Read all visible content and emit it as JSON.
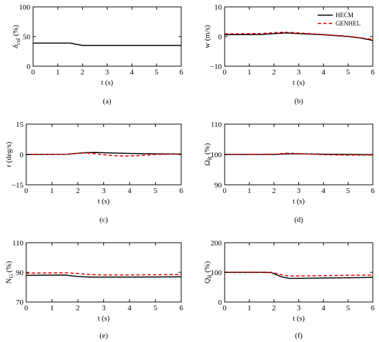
{
  "chart_data": [
    {
      "type": "line",
      "panel_label": "(a)",
      "xlabel": "t (s)",
      "ylabel": "δcol (%)",
      "ylabel_main": "δ",
      "ylabel_sub": "col",
      "ylabel_tail": " (%)",
      "xlim": [
        0,
        6
      ],
      "ylim": [
        0,
        100
      ],
      "xticks": [
        "0",
        "1",
        "2",
        "3",
        "4",
        "5",
        "6"
      ],
      "yticks": [
        "0",
        "50",
        "100"
      ],
      "series": [
        {
          "color": "#000000",
          "dash": "solid",
          "x": [
            0,
            1.5,
            2.0,
            6
          ],
          "y": [
            39,
            39,
            35,
            35
          ]
        }
      ]
    },
    {
      "type": "line",
      "panel_label": "(b)",
      "xlabel": "t (s)",
      "ylabel": "w (m/s)",
      "xlim": [
        0,
        6
      ],
      "ylim": [
        -10,
        10
      ],
      "xticks": [
        "0",
        "1",
        "2",
        "3",
        "4",
        "5",
        "6"
      ],
      "yticks": [
        "−10",
        "0",
        "10"
      ],
      "legend": "top-right",
      "series": [
        {
          "name": "HECM",
          "color": "#000000",
          "dash": "solid",
          "x": [
            0,
            1.5,
            2.0,
            2.5,
            3.0,
            4.0,
            5.0,
            5.5,
            6.0
          ],
          "y": [
            0.6,
            0.7,
            1.0,
            1.2,
            1.0,
            0.6,
            0.0,
            -0.5,
            -1.3
          ]
        },
        {
          "name": "GENHEL",
          "color": "#e00000",
          "dash": "dashed",
          "x": [
            0,
            1.5,
            2.0,
            2.5,
            3.0,
            4.0,
            5.0,
            5.5,
            6.0
          ],
          "y": [
            0.9,
            1.0,
            1.3,
            1.5,
            1.2,
            0.7,
            0.1,
            -0.4,
            -1.0
          ]
        }
      ]
    },
    {
      "type": "line",
      "panel_label": "(c)",
      "xlabel": "t (s)",
      "ylabel": "r (deg/s)",
      "xlim": [
        0,
        6
      ],
      "ylim": [
        -15,
        15
      ],
      "xticks": [
        "0",
        "1",
        "2",
        "3",
        "4",
        "5",
        "6"
      ],
      "yticks": [
        "−15",
        "0",
        "15"
      ],
      "series": [
        {
          "color": "#000000",
          "dash": "solid",
          "x": [
            0,
            1.6,
            2.0,
            2.3,
            2.7,
            3.2,
            4.0,
            5.0,
            6.0
          ],
          "y": [
            0,
            0.1,
            0.6,
            0.9,
            1.0,
            0.8,
            0.5,
            0.3,
            0.2
          ]
        },
        {
          "color": "#e00000",
          "dash": "dashed",
          "x": [
            0,
            1.6,
            2.0,
            2.3,
            2.7,
            3.2,
            3.8,
            4.3,
            5.0,
            6.0
          ],
          "y": [
            0,
            0.1,
            0.6,
            0.7,
            0.3,
            -0.4,
            -0.8,
            -0.6,
            0.0,
            0.2
          ]
        }
      ]
    },
    {
      "type": "line",
      "panel_label": "(d)",
      "xlabel": "t (s)",
      "ylabel": "ΩR (%)",
      "ylabel_main": "Ω",
      "ylabel_sub": "R",
      "ylabel_tail": " (%)",
      "xlim": [
        0,
        6
      ],
      "ylim": [
        90,
        110
      ],
      "xticks": [
        "0",
        "1",
        "2",
        "3",
        "4",
        "5",
        "6"
      ],
      "yticks": [
        "90",
        "100",
        "110"
      ],
      "series": [
        {
          "color": "#000000",
          "dash": "solid",
          "x": [
            0,
            2.0,
            2.5,
            3.0,
            4.0,
            5.0,
            6.0
          ],
          "y": [
            100,
            100,
            100.2,
            100.2,
            100.1,
            100,
            99.9
          ]
        },
        {
          "color": "#e00000",
          "dash": "dashed",
          "x": [
            0,
            2.0,
            2.5,
            3.0,
            4.0,
            5.0,
            6.0
          ],
          "y": [
            100,
            100.1,
            100.4,
            100.3,
            99.9,
            99.8,
            99.8
          ]
        }
      ]
    },
    {
      "type": "line",
      "panel_label": "(e)",
      "xlabel": "t (s)",
      "ylabel": "NG (%)",
      "ylabel_main": "N",
      "ylabel_sub": "G",
      "ylabel_tail": " (%)",
      "xlim": [
        0,
        6
      ],
      "ylim": [
        70,
        110
      ],
      "xticks": [
        "0",
        "1",
        "2",
        "3",
        "4",
        "5",
        "6"
      ],
      "yticks": [
        "70",
        "90",
        "110"
      ],
      "series": [
        {
          "color": "#000000",
          "dash": "solid",
          "x": [
            0,
            1.5,
            2.0,
            2.5,
            3.0,
            4.0,
            6.0
          ],
          "y": [
            88,
            88.2,
            87.2,
            86.8,
            86.8,
            86.8,
            87
          ]
        },
        {
          "color": "#e00000",
          "dash": "dashed",
          "x": [
            0,
            1.5,
            2.0,
            2.5,
            3.0,
            4.0,
            6.0
          ],
          "y": [
            89.5,
            89.7,
            89.2,
            88.4,
            88.3,
            88.3,
            88.5
          ]
        }
      ]
    },
    {
      "type": "line",
      "panel_label": "(f)",
      "xlabel": "t (s)",
      "ylabel": "QR (%)",
      "ylabel_main": "Q",
      "ylabel_sub": "R",
      "ylabel_tail": " (%)",
      "xlim": [
        0,
        6
      ],
      "ylim": [
        0,
        200
      ],
      "xticks": [
        "0",
        "1",
        "2",
        "3",
        "4",
        "5",
        "6"
      ],
      "yticks": [
        "0",
        "100",
        "200"
      ],
      "series": [
        {
          "color": "#000000",
          "dash": "solid",
          "x": [
            0,
            1.5,
            1.9,
            2.3,
            2.6,
            3.0,
            4.0,
            6.0
          ],
          "y": [
            100,
            100,
            99,
            85,
            80,
            80,
            81,
            83
          ]
        },
        {
          "color": "#e00000",
          "dash": "dashed",
          "x": [
            0,
            1.5,
            1.9,
            2.3,
            2.6,
            3.0,
            4.0,
            6.0
          ],
          "y": [
            101,
            101,
            100,
            92,
            88,
            88,
            89,
            91
          ]
        }
      ]
    }
  ]
}
